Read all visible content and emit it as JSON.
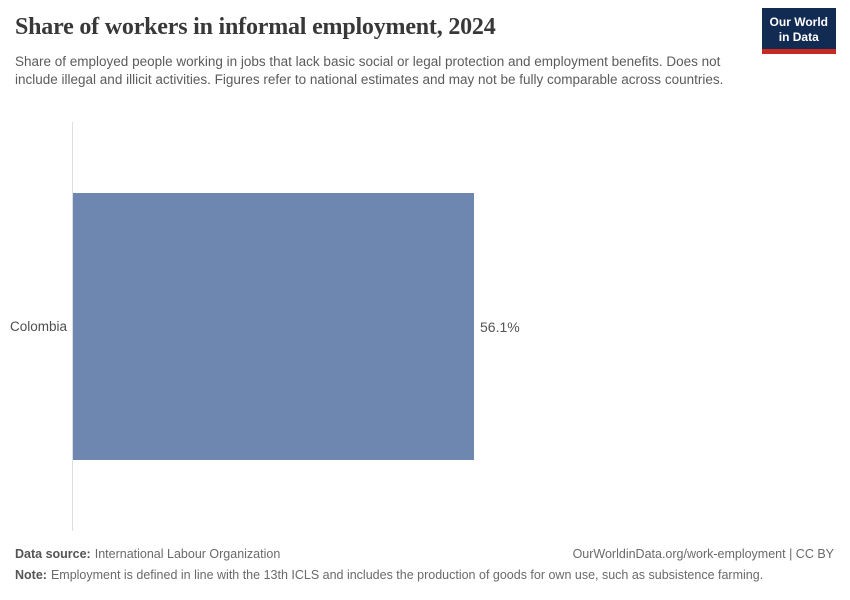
{
  "header": {
    "title": "Share of workers in informal employment, 2024",
    "subtitle": "Share of employed people working in jobs that lack basic social or legal protection and employment benefits. Does not include illegal and illicit activities. Figures refer to national estimates and may not be fully comparable across countries.",
    "logo": {
      "line1": "Our World",
      "line2": "in Data"
    }
  },
  "chart_data": {
    "type": "bar",
    "orientation": "horizontal",
    "title": "Share of workers in informal employment, 2024",
    "categories": [
      "Colombia"
    ],
    "values": [
      56.1
    ],
    "value_labels": [
      "56.1%"
    ],
    "unit": "%",
    "xlim": [
      0,
      100
    ],
    "grid": false,
    "legend": false,
    "bar_color": "#6e87b1"
  },
  "footer": {
    "datasource_label": "Data source:",
    "datasource_value": "International Labour Organization",
    "attribution": "OurWorldinData.org/work-employment | CC BY",
    "note_label": "Note:",
    "note_value": "Employment is defined in line with the 13th ICLS and includes the production of goods for own use, such as subsistence farming."
  },
  "colors": {
    "bar": "#6e87b1",
    "logo_navy": "#122B52",
    "logo_red": "#C62A22",
    "axis_line": "#dedede",
    "title_text": "#383838",
    "body_text": "#5b5b5b"
  }
}
